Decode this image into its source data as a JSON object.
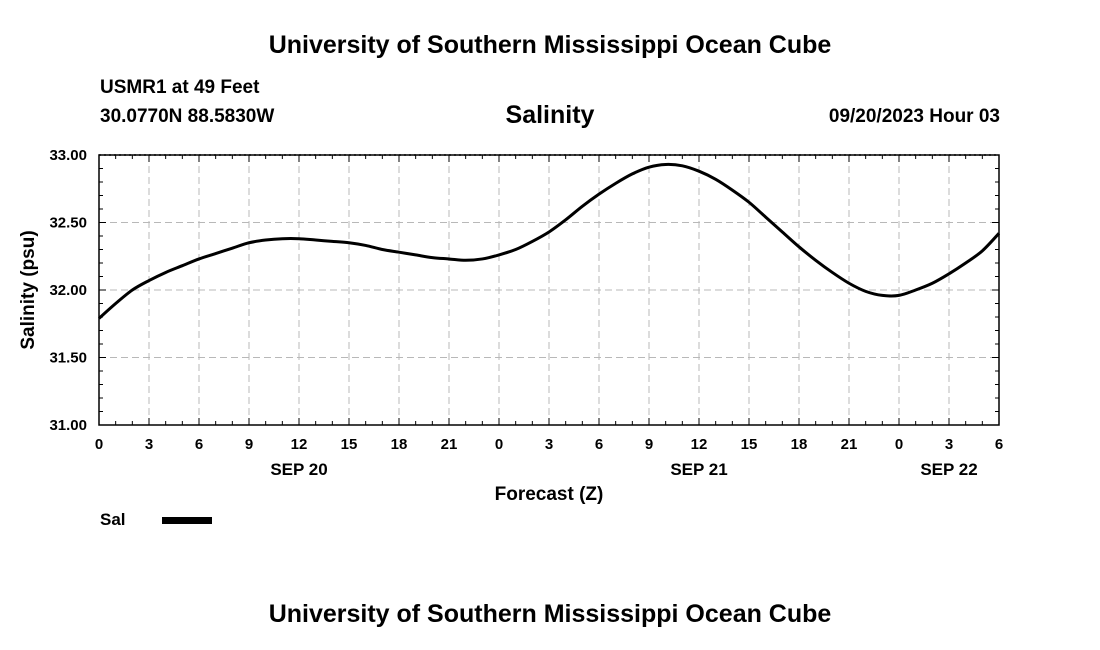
{
  "header": {
    "title": "University of Southern Mississippi Ocean Cube",
    "station": "USMR1 at 49 Feet",
    "coordinates": "30.0770N  88.5830W",
    "variable": "Salinity",
    "datetime": "09/20/2023 Hour 03"
  },
  "footer": {
    "title": "University of Southern Mississippi Ocean Cube"
  },
  "legend": {
    "label": "Sal",
    "color": "#000000"
  },
  "chart_data": {
    "type": "line",
    "title": "Salinity",
    "xlabel": "Forecast (Z)",
    "ylabel": "Salinity (psu)",
    "xlim": [
      0,
      54
    ],
    "ylim": [
      31.0,
      33.0
    ],
    "x_tick_labels": [
      "0",
      "3",
      "6",
      "9",
      "12",
      "15",
      "18",
      "21",
      "0",
      "3",
      "6",
      "9",
      "12",
      "15",
      "18",
      "21",
      "0",
      "3",
      "6"
    ],
    "y_tick_labels": [
      "31.00",
      "31.50",
      "32.00",
      "32.50",
      "33.00"
    ],
    "date_labels": [
      {
        "label": "SEP 20",
        "x": 12
      },
      {
        "label": "SEP 21",
        "x": 36
      },
      {
        "label": "SEP 22",
        "x": 51
      }
    ],
    "grid": true,
    "legend_position": "bottom-left",
    "series": [
      {
        "name": "Sal",
        "color": "#000000",
        "x": [
          0,
          1,
          2,
          3,
          4,
          5,
          6,
          7,
          8,
          9,
          10,
          11,
          12,
          13,
          14,
          15,
          16,
          17,
          18,
          19,
          20,
          21,
          22,
          23,
          24,
          25,
          26,
          27,
          28,
          29,
          30,
          31,
          32,
          33,
          34,
          35,
          36,
          37,
          38,
          39,
          40,
          41,
          42,
          43,
          44,
          45,
          46,
          47,
          48,
          49,
          50,
          51,
          52,
          53,
          54
        ],
        "y": [
          31.79,
          31.9,
          32.0,
          32.07,
          32.13,
          32.18,
          32.23,
          32.27,
          32.31,
          32.35,
          32.37,
          32.38,
          32.38,
          32.37,
          32.36,
          32.35,
          32.33,
          32.3,
          32.28,
          32.26,
          32.24,
          32.23,
          32.22,
          32.23,
          32.26,
          32.3,
          32.36,
          32.43,
          32.52,
          32.62,
          32.71,
          32.79,
          32.86,
          32.91,
          32.93,
          32.92,
          32.88,
          32.82,
          32.74,
          32.65,
          32.54,
          32.43,
          32.32,
          32.22,
          32.13,
          32.05,
          31.99,
          31.96,
          31.96,
          32.0,
          32.05,
          32.12,
          32.2,
          32.29,
          32.42
        ]
      }
    ]
  }
}
